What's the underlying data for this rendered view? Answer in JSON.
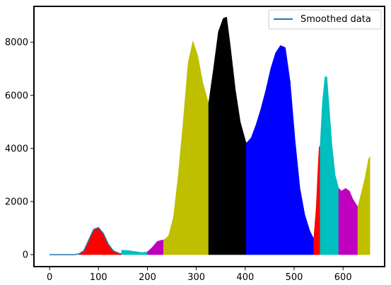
{
  "chart_data": {
    "type": "area",
    "title": "",
    "xlabel": "",
    "ylabel": "",
    "xlim": [
      -32,
      685
    ],
    "ylim": [
      -450,
      9350
    ],
    "xticks": [
      0,
      100,
      200,
      300,
      400,
      500,
      600
    ],
    "yticks": [
      0,
      2000,
      4000,
      6000,
      8000
    ],
    "grid": false,
    "legend": {
      "placement": "top-right",
      "entries": [
        "Smoothed data"
      ]
    },
    "line_series": {
      "name": "Smoothed data",
      "color": "#1f77b4",
      "x": [
        0,
        50,
        60,
        70,
        80,
        90,
        100,
        110,
        120,
        130,
        145
      ],
      "y": [
        0,
        0,
        30,
        150,
        550,
        950,
        1020,
        800,
        400,
        150,
        30
      ]
    },
    "segments": [
      {
        "name": "band-1",
        "color": "#ff0000",
        "points": [
          [
            60,
            30
          ],
          [
            70,
            150
          ],
          [
            80,
            550
          ],
          [
            90,
            950
          ],
          [
            100,
            1020
          ],
          [
            110,
            800
          ],
          [
            120,
            400
          ],
          [
            130,
            150
          ],
          [
            140,
            60
          ],
          [
            147,
            40
          ]
        ]
      },
      {
        "name": "band-2",
        "color": "#00bfbf",
        "points": [
          [
            147,
            170
          ],
          [
            160,
            160
          ],
          [
            175,
            120
          ],
          [
            190,
            80
          ],
          [
            200,
            110
          ]
        ]
      },
      {
        "name": "band-3",
        "color": "#bf00bf",
        "points": [
          [
            200,
            110
          ],
          [
            210,
            280
          ],
          [
            220,
            500
          ],
          [
            230,
            550
          ],
          [
            233,
            550
          ]
        ]
      },
      {
        "name": "band-4",
        "color": "#bfbf00",
        "points": [
          [
            233,
            550
          ],
          [
            243,
            700
          ],
          [
            253,
            1400
          ],
          [
            263,
            3000
          ],
          [
            273,
            5000
          ],
          [
            283,
            7200
          ],
          [
            293,
            8050
          ],
          [
            303,
            7500
          ],
          [
            313,
            6500
          ],
          [
            325,
            5700
          ]
        ]
      },
      {
        "name": "band-5",
        "color": "#000000",
        "points": [
          [
            325,
            5700
          ],
          [
            335,
            7000
          ],
          [
            345,
            8400
          ],
          [
            355,
            8900
          ],
          [
            362,
            8950
          ],
          [
            370,
            7800
          ],
          [
            380,
            6200
          ],
          [
            390,
            5000
          ],
          [
            402,
            4200
          ]
        ]
      },
      {
        "name": "band-6",
        "color": "#0000ff",
        "points": [
          [
            402,
            4200
          ],
          [
            412,
            4400
          ],
          [
            422,
            4900
          ],
          [
            432,
            5500
          ],
          [
            442,
            6200
          ],
          [
            452,
            7000
          ],
          [
            462,
            7600
          ],
          [
            472,
            7880
          ],
          [
            482,
            7800
          ],
          [
            492,
            6500
          ],
          [
            502,
            4300
          ],
          [
            512,
            2500
          ],
          [
            522,
            1500
          ],
          [
            532,
            900
          ],
          [
            540,
            600
          ]
        ]
      },
      {
        "name": "band-7",
        "color": "#ff0000",
        "points": [
          [
            540,
            600
          ],
          [
            545,
            1800
          ],
          [
            548,
            3000
          ],
          [
            551,
            4050
          ],
          [
            553,
            4100
          ]
        ]
      },
      {
        "name": "band-8",
        "color": "#00bfbf",
        "points": [
          [
            553,
            4100
          ],
          [
            558,
            5800
          ],
          [
            563,
            6700
          ],
          [
            567,
            6700
          ],
          [
            572,
            5500
          ],
          [
            577,
            4200
          ],
          [
            584,
            3000
          ],
          [
            591,
            2500
          ]
        ]
      },
      {
        "name": "band-9",
        "color": "#bf00bf",
        "points": [
          [
            591,
            2500
          ],
          [
            597,
            2400
          ],
          [
            605,
            2500
          ],
          [
            613,
            2400
          ],
          [
            620,
            2100
          ],
          [
            630,
            1800
          ]
        ]
      },
      {
        "name": "band-10",
        "color": "#bfbf00",
        "points": [
          [
            630,
            1800
          ],
          [
            637,
            2300
          ],
          [
            645,
            2900
          ],
          [
            652,
            3600
          ],
          [
            655,
            3700
          ]
        ]
      }
    ]
  }
}
